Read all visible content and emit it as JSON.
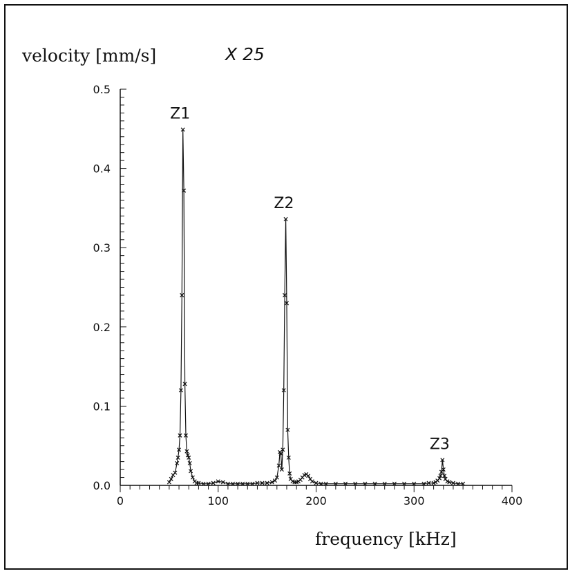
{
  "chart_data": {
    "type": "line",
    "ylabel": "velocity [mm/s]",
    "ylabel_multiplier": "X 25",
    "xlabel": "frequency [kHz]",
    "xlim": [
      0,
      400
    ],
    "ylim": [
      0,
      0.5
    ],
    "x_ticks": [
      "0",
      "100",
      "200",
      "300",
      "400"
    ],
    "y_ticks": [
      "0.0",
      "0.1",
      "0.2",
      "0.3",
      "0.4",
      "0.5"
    ],
    "grid": false,
    "markers": "x",
    "color": "#111111",
    "annotations": [
      {
        "text": "Z1",
        "x": 64,
        "y": 0.449
      },
      {
        "text": "Z2",
        "x": 170,
        "y": 0.336
      },
      {
        "text": "Z3",
        "x": 329,
        "y": 0.032
      }
    ],
    "series": [
      {
        "x": [
          50,
          52,
          54,
          56,
          58,
          59,
          60,
          61,
          62,
          63,
          64,
          65,
          66,
          67,
          68,
          69,
          70,
          71,
          72,
          74,
          76,
          78,
          80,
          85,
          90,
          95,
          100,
          105,
          110,
          115,
          120,
          125,
          130,
          135,
          140,
          145,
          150,
          155,
          158,
          160,
          162,
          163,
          164,
          165,
          166,
          167,
          168,
          169,
          170,
          171,
          172,
          173,
          174,
          176,
          178,
          180,
          182,
          184,
          186,
          188,
          190,
          192,
          194,
          196,
          200,
          205,
          210,
          220,
          230,
          240,
          250,
          260,
          270,
          280,
          290,
          300,
          310,
          315,
          320,
          322,
          324,
          326,
          327,
          328,
          329,
          330,
          331,
          332,
          334,
          336,
          340,
          345,
          350
        ],
        "y": [
          0.004,
          0.008,
          0.013,
          0.016,
          0.028,
          0.035,
          0.045,
          0.063,
          0.12,
          0.24,
          0.449,
          0.372,
          0.128,
          0.063,
          0.043,
          0.038,
          0.035,
          0.028,
          0.018,
          0.01,
          0.005,
          0.003,
          0.003,
          0.002,
          0.002,
          0.003,
          0.005,
          0.004,
          0.002,
          0.002,
          0.002,
          0.002,
          0.002,
          0.002,
          0.003,
          0.003,
          0.003,
          0.004,
          0.006,
          0.01,
          0.025,
          0.042,
          0.04,
          0.02,
          0.045,
          0.12,
          0.24,
          0.336,
          0.23,
          0.07,
          0.035,
          0.015,
          0.008,
          0.005,
          0.004,
          0.004,
          0.005,
          0.007,
          0.01,
          0.013,
          0.014,
          0.012,
          0.008,
          0.005,
          0.003,
          0.002,
          0.002,
          0.002,
          0.002,
          0.002,
          0.002,
          0.002,
          0.002,
          0.002,
          0.002,
          0.002,
          0.002,
          0.003,
          0.003,
          0.004,
          0.006,
          0.009,
          0.012,
          0.017,
          0.032,
          0.02,
          0.012,
          0.008,
          0.005,
          0.004,
          0.003,
          0.002,
          0.002
        ]
      }
    ]
  }
}
